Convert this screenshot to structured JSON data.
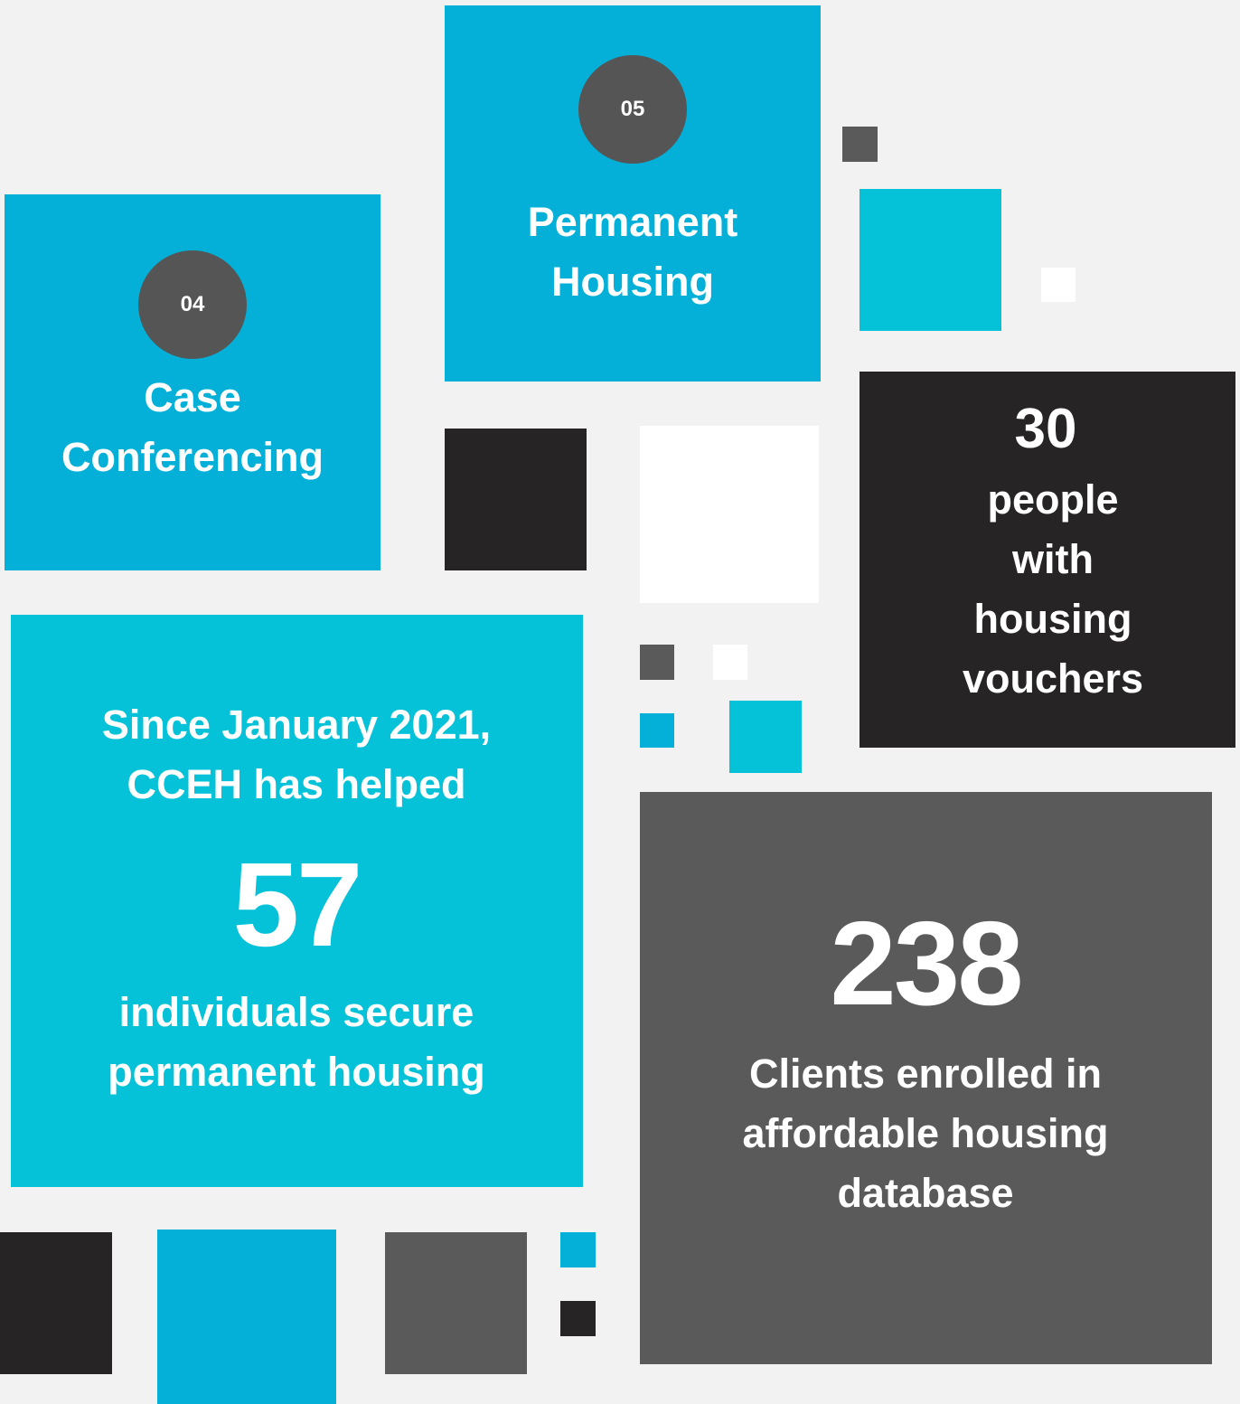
{
  "steps": [
    {
      "number": "04",
      "label": "Case Conferencing"
    },
    {
      "number": "05",
      "label": "Permanent Housing"
    }
  ],
  "stats": [
    {
      "intro": "Since January 2021, CCEH has helped",
      "value": "57",
      "caption": "individuals secure permanent housing"
    },
    {
      "value": "30",
      "caption": "people with housing vouchers"
    },
    {
      "value": "238",
      "caption": "Clients enrolled in affordable housing database"
    }
  ]
}
